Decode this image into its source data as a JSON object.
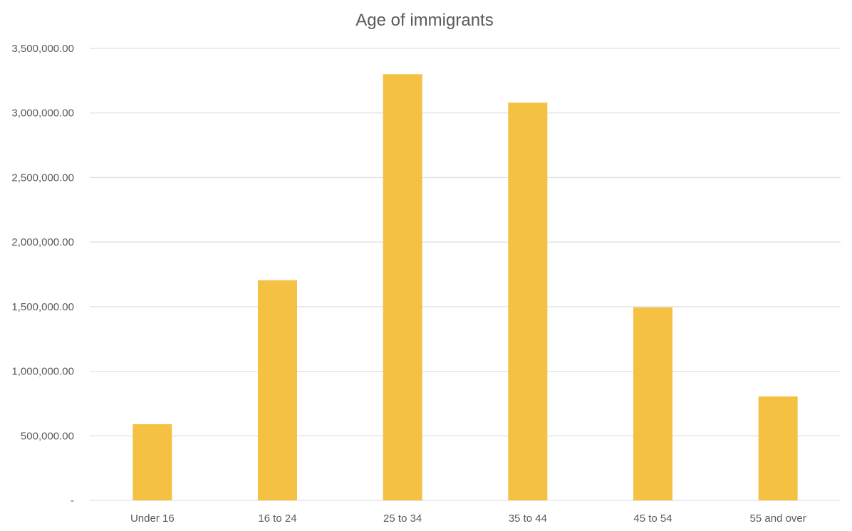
{
  "chart_data": {
    "type": "bar",
    "title": "Age of immigrants",
    "xlabel": "",
    "ylabel": "",
    "categories": [
      "Under 16",
      "16 to 24",
      "25 to 34",
      "35 to 44",
      "45 to 54",
      "55 and over"
    ],
    "values": [
      590000,
      1705000,
      3300000,
      3080000,
      1495000,
      805000
    ],
    "ylim": [
      0,
      3500000
    ],
    "yticks": [
      0,
      500000,
      1000000,
      1500000,
      2000000,
      2500000,
      3000000,
      3500000
    ],
    "ytick_labels": [
      "-",
      "500,000.00",
      "1,000,000.00",
      "1,500,000.00",
      "2,000,000.00",
      "2,500,000.00",
      "3,000,000.00",
      "3,500,000.00"
    ],
    "grid": true,
    "legend": "none",
    "bar_color": "#F4C142"
  }
}
